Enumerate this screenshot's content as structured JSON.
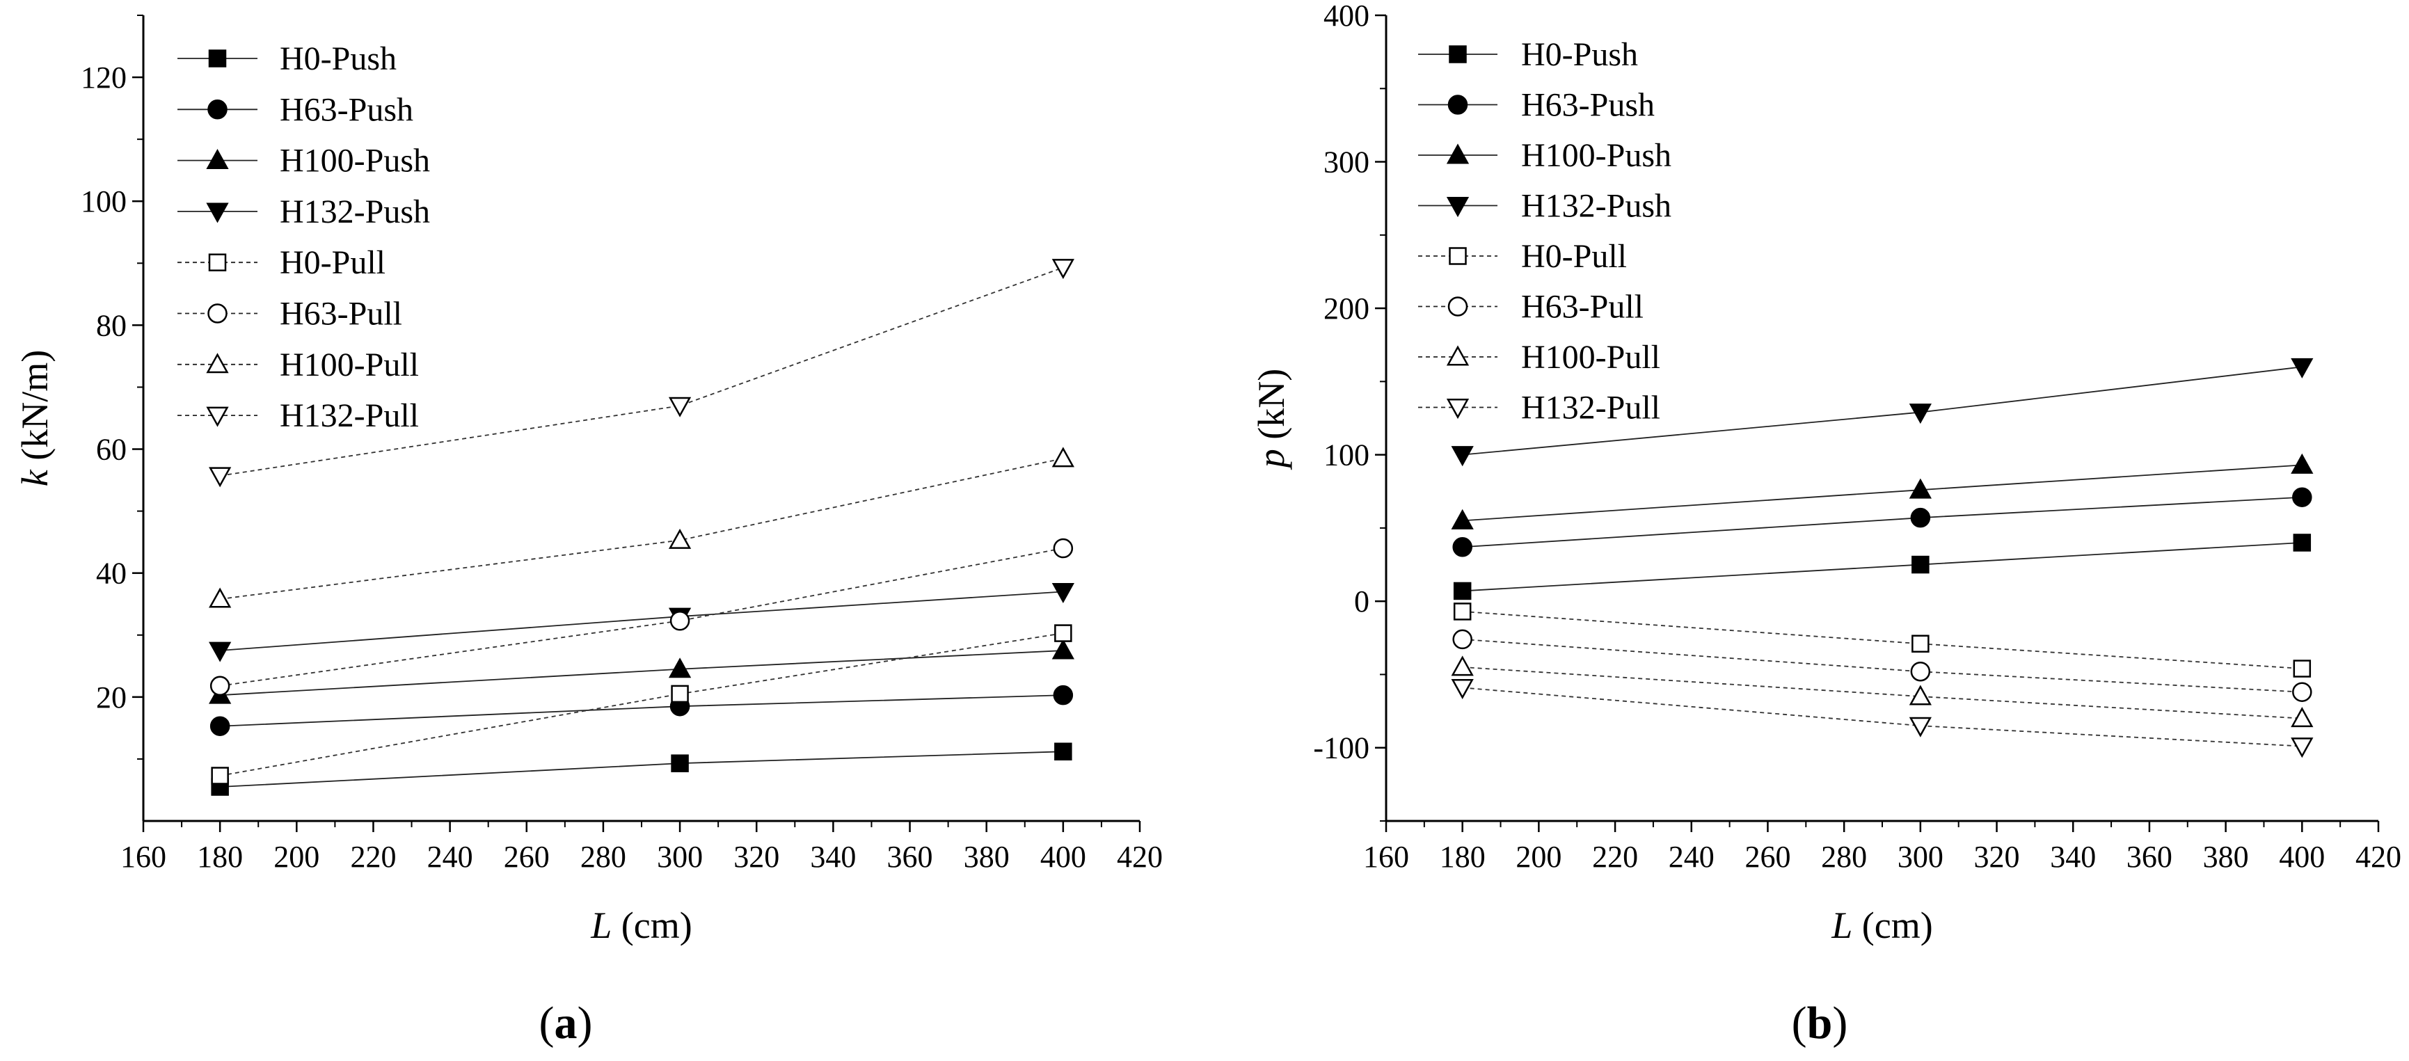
{
  "figure": {
    "panel_labels": [
      "(a)",
      "(b)"
    ]
  },
  "chart_data": [
    {
      "type": "line",
      "panel": "(a)",
      "title": "",
      "xlabel": "L (cm)",
      "xlabel_var": "L",
      "xlabel_unit": " (cm)",
      "ylabel": "k (kN/m)",
      "ylabel_var": "k",
      "ylabel_unit": " (kN/m)",
      "xlim": [
        160,
        420
      ],
      "ylim": [
        0,
        130
      ],
      "xticks": [
        160,
        180,
        200,
        220,
        240,
        260,
        280,
        300,
        320,
        340,
        360,
        380,
        400,
        420
      ],
      "yticks": [
        20,
        40,
        60,
        80,
        100,
        120
      ],
      "grid": false,
      "legend_position": "top-left",
      "x": [
        180,
        300,
        400
      ],
      "series": [
        {
          "name": "H0-Push",
          "marker": "square",
          "filled": true,
          "dashed": false,
          "values": [
            5.5,
            9.3,
            11.2
          ]
        },
        {
          "name": "H63-Push",
          "marker": "circle",
          "filled": true,
          "dashed": false,
          "values": [
            15.3,
            18.5,
            20.3
          ]
        },
        {
          "name": "H100-Push",
          "marker": "triangle-up",
          "filled": true,
          "dashed": false,
          "values": [
            20.3,
            24.5,
            27.5
          ]
        },
        {
          "name": "H132-Push",
          "marker": "triangle-down",
          "filled": true,
          "dashed": false,
          "values": [
            27.5,
            33.0,
            37.0
          ]
        },
        {
          "name": "H0-Pull",
          "marker": "square",
          "filled": false,
          "dashed": true,
          "values": [
            7.3,
            20.5,
            30.3
          ]
        },
        {
          "name": "H63-Pull",
          "marker": "circle",
          "filled": false,
          "dashed": true,
          "values": [
            21.8,
            32.3,
            44.0
          ]
        },
        {
          "name": "H100-Pull",
          "marker": "triangle-up",
          "filled": false,
          "dashed": true,
          "values": [
            35.8,
            45.3,
            58.5
          ]
        },
        {
          "name": "H132-Pull",
          "marker": "triangle-down",
          "filled": false,
          "dashed": true,
          "values": [
            55.7,
            67.0,
            89.3
          ]
        }
      ]
    },
    {
      "type": "line",
      "panel": "(b)",
      "title": "",
      "xlabel": "L (cm)",
      "xlabel_var": "L",
      "xlabel_unit": " (cm)",
      "ylabel": "p (kN)",
      "ylabel_var": "p",
      "ylabel_unit": " (kN)",
      "xlim": [
        160,
        420
      ],
      "ylim": [
        -150,
        400
      ],
      "xticks": [
        160,
        180,
        200,
        220,
        240,
        260,
        280,
        300,
        320,
        340,
        360,
        380,
        400,
        420
      ],
      "yticks": [
        -100,
        0,
        100,
        200,
        300,
        400
      ],
      "grid": false,
      "legend_position": "top-left",
      "x": [
        180,
        300,
        400
      ],
      "series": [
        {
          "name": "H0-Push",
          "marker": "square",
          "filled": true,
          "dashed": false,
          "values": [
            7,
            25,
            40
          ]
        },
        {
          "name": "H63-Push",
          "marker": "circle",
          "filled": true,
          "dashed": false,
          "values": [
            37,
            57,
            71
          ]
        },
        {
          "name": "H100-Push",
          "marker": "triangle-up",
          "filled": true,
          "dashed": false,
          "values": [
            55,
            76,
            93
          ]
        },
        {
          "name": "H132-Push",
          "marker": "triangle-down",
          "filled": true,
          "dashed": false,
          "values": [
            100,
            129,
            160
          ]
        },
        {
          "name": "H0-Pull",
          "marker": "square",
          "filled": false,
          "dashed": true,
          "values": [
            -7,
            -29,
            -46
          ]
        },
        {
          "name": "H63-Pull",
          "marker": "circle",
          "filled": false,
          "dashed": true,
          "values": [
            -26,
            -48,
            -62
          ]
        },
        {
          "name": "H100-Pull",
          "marker": "triangle-up",
          "filled": false,
          "dashed": true,
          "values": [
            -45,
            -65,
            -80
          ]
        },
        {
          "name": "H132-Pull",
          "marker": "triangle-down",
          "filled": false,
          "dashed": true,
          "values": [
            -59,
            -85,
            -99
          ]
        }
      ]
    }
  ]
}
